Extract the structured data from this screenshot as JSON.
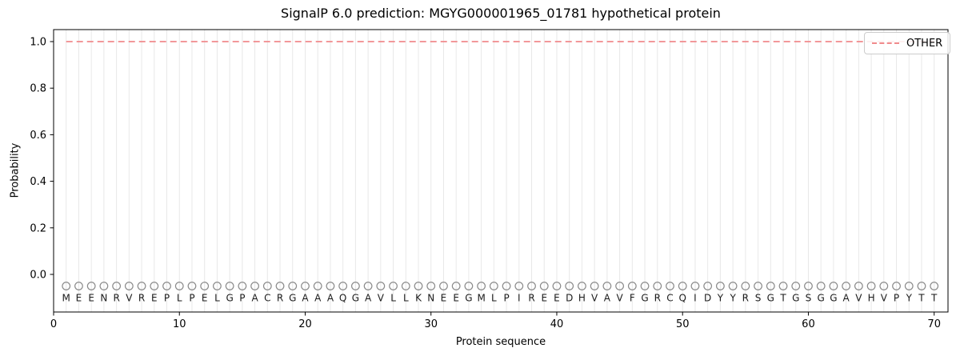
{
  "chart_data": {
    "type": "line",
    "title": "SignalP 6.0 prediction: MGYG000001965_01781 hypothetical protein",
    "xlabel": "Protein sequence",
    "ylabel": "Probability",
    "xlim": [
      0,
      71.1
    ],
    "ylim": [
      -0.16,
      1.05
    ],
    "x_ticks": [
      0,
      10,
      20,
      30,
      40,
      50,
      60,
      70
    ],
    "y_ticks": [
      "0.0",
      "0.2",
      "0.4",
      "0.6",
      "0.8",
      "1.0"
    ],
    "grid": "vertical light-gray gridline at every residue position 1-70, no horizontal gridlines",
    "legend_position": "upper right",
    "series": [
      {
        "name": "OTHER",
        "color": "#f08a8c",
        "linestyle": "dashed",
        "x": [
          1,
          70
        ],
        "y": [
          1.0,
          1.0
        ],
        "description": "constant probability 1.0 across all 70 residues"
      }
    ],
    "sequence": "MEENRVREPLPELGPACRGAAAQGAVLLKNEEGMLPIREEDHVAVFGRCQIDYYRSGTGSGGAVHVPYTT",
    "sequence_length": 70,
    "residue_marker": {
      "shape": "open-circle",
      "y": -0.05,
      "color": "#8a8a8a"
    },
    "residue_letter_y": -0.1
  },
  "legend": {
    "other_label": "OTHER"
  },
  "colors": {
    "other_line": "#f08a8c",
    "gridline": "#e8e8e8",
    "marker": "#8a8a8a",
    "letter": "#1a1a1a",
    "axis": "#000000"
  }
}
